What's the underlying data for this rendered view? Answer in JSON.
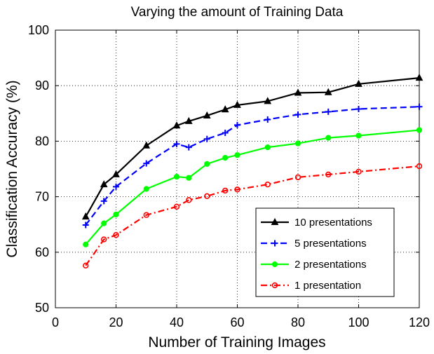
{
  "chart_data": {
    "type": "line",
    "title": "Varying the amount of Training Data",
    "xlabel": "Number of Training Images",
    "ylabel": "Classification Accuracy (%)",
    "xlim": [
      0,
      120
    ],
    "ylim": [
      50,
      100
    ],
    "xticks": [
      0,
      20,
      40,
      60,
      80,
      100,
      120
    ],
    "yticks": [
      50,
      60,
      70,
      80,
      90,
      100
    ],
    "grid": true,
    "legend_position": "bottom-right",
    "x": [
      10,
      16,
      20,
      30,
      40,
      44,
      50,
      56,
      60,
      70,
      80,
      90,
      100,
      120
    ],
    "series": [
      {
        "name": "10 presentations",
        "color": "#000000",
        "dash": "",
        "marker": "triangle",
        "values": [
          66.4,
          72.2,
          74.0,
          79.2,
          82.8,
          83.6,
          84.6,
          85.7,
          86.5,
          87.2,
          88.7,
          88.8,
          90.3,
          91.4
        ]
      },
      {
        "name": "5 presentations",
        "color": "#0000ff",
        "dash": "9,5",
        "marker": "plus",
        "values": [
          64.9,
          69.2,
          71.8,
          76.0,
          79.5,
          78.9,
          80.4,
          81.5,
          82.9,
          83.9,
          84.8,
          85.3,
          85.8,
          86.2
        ]
      },
      {
        "name": "2 presentations",
        "color": "#00ff00",
        "dash": "",
        "marker": "dot",
        "values": [
          61.4,
          65.2,
          66.8,
          71.4,
          73.6,
          73.4,
          75.9,
          77.0,
          77.5,
          78.9,
          79.6,
          80.6,
          81.0,
          82.0
        ]
      },
      {
        "name": "1 presentation",
        "color": "#ff0000",
        "dash": "9,4,2,4",
        "marker": "circle",
        "values": [
          57.6,
          62.3,
          63.1,
          66.7,
          68.2,
          69.4,
          70.1,
          71.1,
          71.3,
          72.2,
          73.5,
          74.0,
          74.5,
          75.5
        ]
      }
    ]
  }
}
